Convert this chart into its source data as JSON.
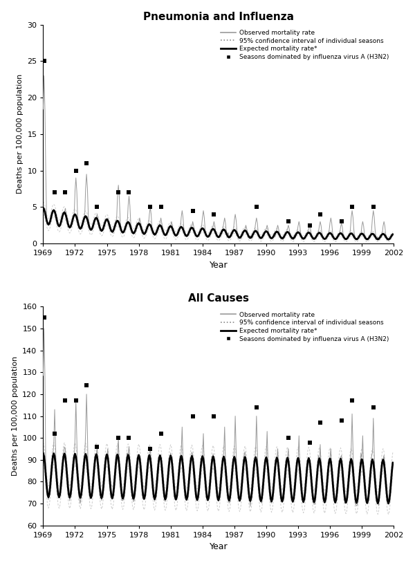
{
  "title1": "Pneumonia and Influenza",
  "title2": "All Causes",
  "xlabel": "Year",
  "ylabel1": "Deaths per 100,000 population",
  "ylabel2": "Deaths per 100,000 population",
  "ylim1": [
    0,
    30
  ],
  "ylim2": [
    60,
    160
  ],
  "yticks1": [
    0,
    5,
    10,
    15,
    20,
    25,
    30
  ],
  "yticks2": [
    60,
    70,
    80,
    90,
    100,
    110,
    120,
    130,
    140,
    150,
    160
  ],
  "xtick_years": [
    1969,
    1972,
    1975,
    1978,
    1981,
    1984,
    1987,
    1990,
    1993,
    1996,
    1999,
    2002
  ],
  "start_year": 1969,
  "n_months": 396,
  "legend_entries": [
    "Observed mortality rate",
    "95% confidence interval of individual seasons",
    "Expected mortality rate*",
    "Seasons dominated by influenza virus A (H3N2)"
  ],
  "observed_color": "#999999",
  "ci_color": "#cccccc",
  "expected_color": "#000000",
  "marker_color": "#000000",
  "background_color": "#ffffff",
  "pi_h3n2_years": [
    1969.08,
    1970.08,
    1971.08,
    1972.08,
    1973.08,
    1974.08,
    1976.08,
    1977.08,
    1979.08,
    1980.08,
    1983.08,
    1985.08,
    1989.08,
    1992.08,
    1994.08,
    1995.08,
    1997.08,
    1998.08,
    2000.08
  ],
  "pi_h3n2_vals": [
    25,
    7,
    7,
    10,
    11,
    5,
    7,
    7,
    5,
    5,
    4.5,
    4,
    5,
    3,
    2.5,
    4,
    3,
    5,
    5
  ],
  "ac_h3n2_years": [
    1969.08,
    1970.08,
    1971.08,
    1972.08,
    1973.08,
    1974.08,
    1976.08,
    1977.08,
    1979.08,
    1980.08,
    1983.08,
    1985.08,
    1989.08,
    1992.08,
    1994.08,
    1995.08,
    1997.08,
    1998.08,
    2000.08
  ],
  "ac_h3n2_vals": [
    155,
    102,
    117,
    117,
    124,
    96,
    100,
    100,
    95,
    102,
    110,
    110,
    114,
    100,
    98,
    107,
    108,
    117,
    114
  ]
}
